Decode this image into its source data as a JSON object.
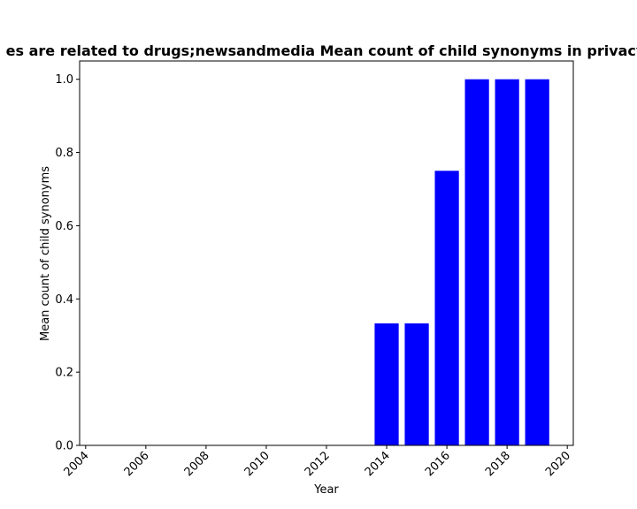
{
  "chart_data": {
    "type": "bar",
    "title": "es are related to drugs;newsandmedia Mean count of child synonyms in privacy",
    "xlabel": "Year",
    "ylabel": "Mean count of child synonyms",
    "x": [
      2014,
      2015,
      2016,
      2017,
      2018,
      2019
    ],
    "values": [
      0.3333,
      0.3333,
      0.75,
      1.0,
      1.0,
      1.0
    ],
    "xlim": [
      2003.8,
      2020.2
    ],
    "ylim": [
      0,
      1.05
    ],
    "xticks": [
      "2004",
      "2006",
      "2008",
      "2010",
      "2012",
      "2014",
      "2016",
      "2018",
      "2020"
    ],
    "yticks": [
      "0.0",
      "0.2",
      "0.4",
      "0.6",
      "0.8",
      "1.0"
    ],
    "bar_color": "#0000ff",
    "grid": false,
    "legend": "none"
  }
}
